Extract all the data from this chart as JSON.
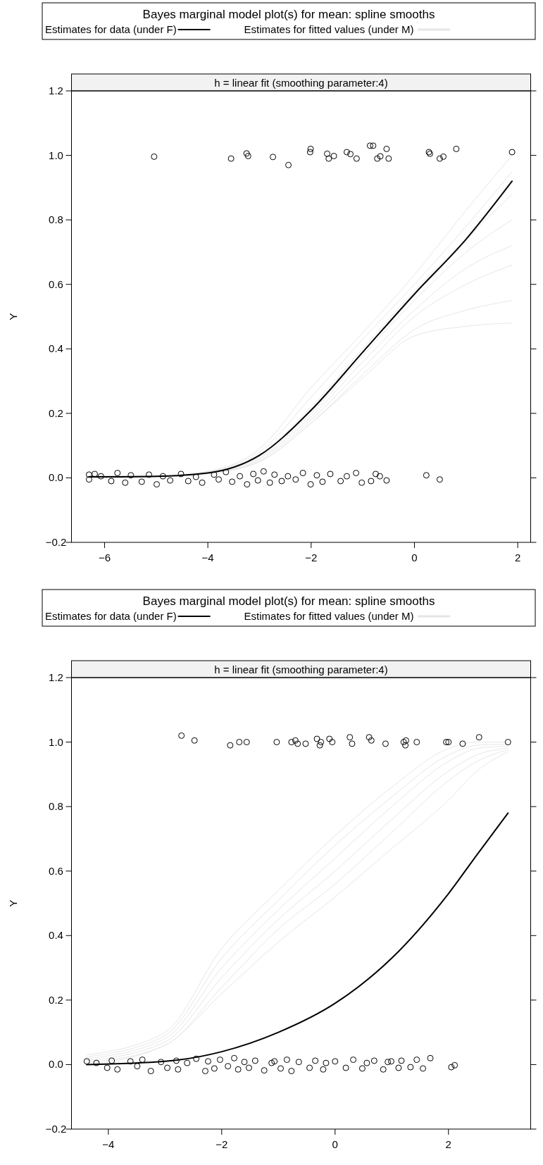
{
  "chart_data": [
    {
      "type": "line",
      "title": "Bayes marginal model plot(s) for mean: spline smooths",
      "subtitle": "h = linear fit (smoothing parameter:4)",
      "ylabel": "Y",
      "legend": "top",
      "xlim": [
        -6.64,
        2.25
      ],
      "ylim": [
        -0.2,
        1.2
      ],
      "xticks": [
        {
          "value": -6,
          "label": "−6"
        },
        {
          "value": -4,
          "label": "−4"
        },
        {
          "value": -2,
          "label": "−2"
        },
        {
          "value": 0,
          "label": "0"
        },
        {
          "value": 2,
          "label": "2"
        }
      ],
      "yticks": [
        {
          "value": -0.2,
          "label": "−0.2"
        },
        {
          "value": 0,
          "label": "0.0"
        },
        {
          "value": 0.2,
          "label": "0.2"
        },
        {
          "value": 0.4,
          "label": "0.4"
        },
        {
          "value": 0.6,
          "label": "0.6"
        },
        {
          "value": 0.8,
          "label": "0.8"
        },
        {
          "value": 1,
          "label": "1.0"
        },
        {
          "value": 1.2,
          "label": "1.2"
        }
      ],
      "series": [
        {
          "name": "Estimates for fitted values (under M)",
          "color": "#e6e6e6",
          "x": [
            -6.3,
            -5,
            -4,
            -3,
            -2,
            -1,
            0,
            1,
            1.89
          ],
          "values": [
            0.008,
            0.006,
            0.02,
            0.09,
            0.28,
            0.45,
            0.63,
            0.83,
            1.0
          ]
        },
        {
          "color": "#e6e6e6",
          "x": [
            -6.3,
            -5,
            -4,
            -3,
            -2,
            -1,
            0,
            1,
            1.89
          ],
          "values": [
            0.007,
            0.005,
            0.02,
            0.08,
            0.25,
            0.43,
            0.6,
            0.78,
            0.95
          ]
        },
        {
          "color": "#e6e6e6",
          "x": [
            -6.3,
            -5,
            -4,
            -3,
            -2,
            -1,
            0,
            1,
            1.89
          ],
          "values": [
            0.006,
            0.004,
            0.018,
            0.07,
            0.22,
            0.4,
            0.58,
            0.74,
            0.88
          ]
        },
        {
          "color": "#e6e6e6",
          "x": [
            -6.3,
            -5,
            -4,
            -3,
            -2,
            -1,
            0,
            1,
            1.89
          ],
          "values": [
            0.005,
            0.004,
            0.016,
            0.065,
            0.2,
            0.38,
            0.55,
            0.7,
            0.8
          ]
        },
        {
          "color": "#e6e6e6",
          "x": [
            -6.3,
            -5,
            -4,
            -3,
            -2,
            -1,
            0,
            1,
            1.89
          ],
          "values": [
            0.004,
            0.003,
            0.015,
            0.06,
            0.19,
            0.36,
            0.52,
            0.65,
            0.72
          ]
        },
        {
          "color": "#e6e6e6",
          "x": [
            -6.3,
            -5,
            -4,
            -3,
            -2,
            -1,
            0,
            1,
            1.89
          ],
          "values": [
            0.003,
            0.003,
            0.014,
            0.055,
            0.18,
            0.34,
            0.5,
            0.6,
            0.66
          ]
        },
        {
          "color": "#e6e6e6",
          "x": [
            -6.3,
            -5,
            -4,
            -3,
            -2,
            -1,
            0,
            1,
            1.89
          ],
          "values": [
            0.002,
            0.003,
            0.013,
            0.05,
            0.17,
            0.32,
            0.46,
            0.52,
            0.55
          ]
        },
        {
          "color": "#e6e6e6",
          "x": [
            -6.3,
            -5,
            -4,
            -3,
            -2,
            -1,
            0,
            1,
            1.89
          ],
          "values": [
            0.001,
            0.003,
            0.013,
            0.05,
            0.17,
            0.31,
            0.44,
            0.47,
            0.48
          ]
        },
        {
          "type": "scatter",
          "marker": "circle",
          "color": "#000000",
          "x": [
            -5.04,
            -3.55,
            -3.25,
            -3.22,
            -2.74,
            -2.44,
            -2.02,
            -2.01,
            -1.69,
            -1.66,
            -1.56,
            -1.31,
            -1.24,
            -1.12,
            -0.86,
            -0.8,
            -0.72,
            -0.66,
            -0.54,
            -0.5,
            0.28,
            0.3,
            0.49,
            0.56,
            0.81,
            1.89,
            -6.3,
            -6.3,
            -6.19,
            -6.07,
            -5.87,
            -5.75,
            -5.6,
            -5.49,
            -5.28,
            -5.14,
            -4.99,
            -4.87,
            -4.73,
            -4.52,
            -4.38,
            -4.23,
            -4.11,
            -3.88,
            -3.79,
            -3.65,
            -3.53,
            -3.38,
            -3.24,
            -3.12,
            -3.03,
            -2.92,
            -2.8,
            -2.71,
            -2.57,
            -2.45,
            -2.3,
            -2.16,
            -2.01,
            -1.89,
            -1.78,
            -1.63,
            -1.43,
            -1.31,
            -1.13,
            -1.02,
            -0.84,
            -0.75,
            -0.67,
            -0.54,
            0.23,
            0.49
          ],
          "values": [
            0.996,
            0.99,
            1.006,
            0.998,
            0.995,
            0.97,
            1.01,
            1.02,
            1.005,
            0.99,
            0.998,
            1.01,
            1.004,
            0.99,
            1.03,
            1.03,
            0.99,
            0.997,
            1.02,
            0.99,
            1.01,
            1.005,
            0.99,
            0.996,
            1.02,
            1.01,
            0.01,
            -0.005,
            0.012,
            0.005,
            -0.01,
            0.015,
            -0.015,
            0.008,
            -0.012,
            0.01,
            -0.02,
            0.005,
            -0.008,
            0.012,
            -0.01,
            0.003,
            -0.015,
            0.01,
            -0.005,
            0.018,
            -0.012,
            0.005,
            -0.02,
            0.012,
            -0.008,
            0.02,
            -0.015,
            0.01,
            -0.01,
            0.005,
            -0.005,
            0.015,
            -0.02,
            0.008,
            -0.012,
            0.012,
            -0.01,
            0.005,
            0.015,
            -0.015,
            -0.01,
            0.012,
            0.005,
            -0.008,
            0.008,
            -0.005
          ]
        },
        {
          "name": "Estimates for data (under F)",
          "color": "#000000",
          "x": [
            -6.3,
            -5,
            -4,
            -3,
            -2,
            -1,
            0,
            1,
            1.89
          ],
          "values": [
            0.003,
            0.005,
            0.015,
            0.07,
            0.21,
            0.39,
            0.57,
            0.74,
            0.92
          ]
        }
      ]
    },
    {
      "type": "line",
      "title": "Bayes marginal model plot(s) for mean: spline smooths",
      "subtitle": "h = linear fit (smoothing parameter:4)",
      "ylabel": "Y",
      "legend": "top",
      "xlim": [
        -4.65,
        3.45
      ],
      "ylim": [
        -0.2,
        1.2
      ],
      "xticks": [
        {
          "value": -4,
          "label": "−4"
        },
        {
          "value": -2,
          "label": "−2"
        },
        {
          "value": 0,
          "label": "0"
        },
        {
          "value": 2,
          "label": "2"
        }
      ],
      "yticks": [
        {
          "value": -0.2,
          "label": "−0.2"
        },
        {
          "value": 0,
          "label": "0.0"
        },
        {
          "value": 0.2,
          "label": "0.2"
        },
        {
          "value": 0.4,
          "label": "0.4"
        },
        {
          "value": 0.6,
          "label": "0.6"
        },
        {
          "value": 0.8,
          "label": "0.8"
        },
        {
          "value": 1,
          "label": "1.0"
        },
        {
          "value": 1.2,
          "label": "1.2"
        }
      ],
      "series": [
        {
          "name": "Estimates for fitted values (under M)",
          "color": "#e6e6e6",
          "x": [
            -4.38,
            -3,
            -2,
            -1,
            0,
            1,
            2,
            2.5,
            3.05
          ],
          "values": [
            0.03,
            0.1,
            0.36,
            0.54,
            0.71,
            0.86,
            0.98,
            1.0,
            1.0
          ]
        },
        {
          "color": "#e6e6e6",
          "x": [
            -4.38,
            -3,
            -2,
            -1,
            0,
            1,
            2,
            2.5,
            3.05
          ],
          "values": [
            0.024,
            0.09,
            0.33,
            0.51,
            0.68,
            0.83,
            0.96,
            0.99,
            0.994
          ]
        },
        {
          "color": "#e6e6e6",
          "x": [
            -4.38,
            -3,
            -2,
            -1,
            0,
            1,
            2,
            2.5,
            3.05
          ],
          "values": [
            0.018,
            0.08,
            0.3,
            0.48,
            0.64,
            0.8,
            0.94,
            0.98,
            0.988
          ]
        },
        {
          "color": "#e6e6e6",
          "x": [
            -4.38,
            -3,
            -2,
            -1,
            0,
            1,
            2,
            2.5,
            3.05
          ],
          "values": [
            0.012,
            0.07,
            0.27,
            0.45,
            0.6,
            0.76,
            0.91,
            0.96,
            0.982
          ]
        },
        {
          "color": "#e6e6e6",
          "x": [
            -4.38,
            -3,
            -2,
            -1,
            0,
            1,
            2,
            2.5,
            3.05
          ],
          "values": [
            0.006,
            0.06,
            0.24,
            0.42,
            0.56,
            0.72,
            0.88,
            0.94,
            0.976
          ]
        },
        {
          "color": "#e6e6e6",
          "x": [
            -4.38,
            -3,
            -2,
            -1,
            0,
            1,
            2,
            2.5,
            3.05
          ],
          "values": [
            0,
            0.06,
            0.22,
            0.38,
            0.52,
            0.67,
            0.82,
            0.91,
            0.97
          ]
        },
        {
          "type": "scatter",
          "marker": "circle",
          "color": "#000000",
          "x": [
            -2.71,
            -2.48,
            -1.85,
            -1.69,
            -1.56,
            -1.03,
            -0.77,
            -0.7,
            -0.66,
            -0.52,
            -0.32,
            -0.27,
            -0.25,
            -0.1,
            -0.05,
            0.26,
            0.3,
            0.6,
            0.64,
            0.89,
            1.21,
            1.24,
            1.25,
            1.44,
            1.96,
            2.0,
            2.25,
            2.54,
            3.05,
            -4.38,
            -4.21,
            -4.02,
            -3.94,
            -3.84,
            -3.61,
            -3.49,
            -3.4,
            -3.25,
            -3.07,
            -2.96,
            -2.8,
            -2.77,
            -2.61,
            -2.45,
            -2.29,
            -2.24,
            -2.13,
            -2.03,
            -1.89,
            -1.78,
            -1.71,
            -1.6,
            -1.52,
            -1.41,
            -1.25,
            -1.12,
            -1.07,
            -0.96,
            -0.85,
            -0.77,
            -0.64,
            -0.45,
            -0.35,
            -0.21,
            -0.16,
            0,
            0.19,
            0.32,
            0.48,
            0.56,
            0.69,
            0.85,
            0.93,
            0.99,
            1.12,
            1.17,
            1.33,
            1.44,
            1.55,
            1.68,
            2.05,
            2.11
          ],
          "values": [
            1.02,
            1.005,
            0.99,
            1.0,
            1.0,
            1.0,
            1.0,
            1.005,
            0.995,
            0.995,
            1.01,
            0.99,
            1.0,
            1.01,
            1.0,
            1.015,
            0.995,
            1.015,
            1.005,
            0.995,
            1.0,
            0.99,
            1.005,
            1.0,
            1.0,
            1.0,
            0.995,
            1.015,
            1.0,
            0.01,
            0.005,
            -0.01,
            0.012,
            -0.015,
            0.01,
            -0.005,
            0.015,
            -0.02,
            0.008,
            -0.01,
            0.012,
            -0.015,
            0.005,
            0.018,
            -0.02,
            0.01,
            -0.012,
            0.015,
            -0.005,
            0.02,
            -0.015,
            0.008,
            -0.01,
            0.012,
            -0.018,
            0.005,
            0.01,
            -0.012,
            0.015,
            -0.02,
            0.008,
            -0.01,
            0.012,
            -0.015,
            0.005,
            0.01,
            -0.01,
            0.015,
            -0.012,
            0.005,
            0.012,
            -0.015,
            0.008,
            0.01,
            -0.01,
            0.012,
            -0.008,
            0.015,
            -0.012,
            0.02,
            -0.008,
            -0.002
          ]
        },
        {
          "name": "Estimates for data (under F)",
          "color": "#000000",
          "x": [
            -4.38,
            -3,
            -2,
            -1,
            0,
            1,
            2,
            2.5,
            3.05
          ],
          "values": [
            0,
            0.01,
            0.04,
            0.1,
            0.19,
            0.33,
            0.53,
            0.65,
            0.78
          ]
        }
      ]
    }
  ]
}
